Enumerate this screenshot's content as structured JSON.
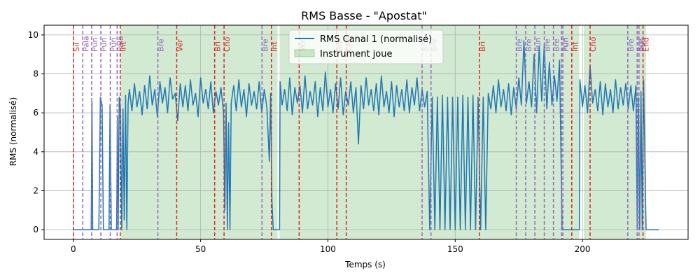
{
  "chart_data": {
    "type": "line",
    "title": "RMS Basse - \"Apostat\"",
    "xlabel": "Temps (s)",
    "ylabel": "RMS (normalisé)",
    "xlim": [
      -11.5,
      241.5
    ],
    "ylim": [
      -0.5,
      10.5
    ],
    "xticks": [
      0,
      50,
      100,
      150,
      200
    ],
    "yticks": [
      0,
      2,
      4,
      6,
      8,
      10
    ],
    "grid": true,
    "legend_position": "top-center",
    "series": [
      {
        "name": "RMS Canal 1 (normalisé)",
        "color": "#1f77b4",
        "points": [
          [
            0,
            0
          ],
          [
            3,
            0
          ],
          [
            3.5,
            0
          ],
          [
            7,
            0
          ],
          [
            7.3,
            6.6
          ],
          [
            7.6,
            0
          ],
          [
            10,
            0
          ],
          [
            10.6,
            6.8
          ],
          [
            11.3,
            6.4
          ],
          [
            11.8,
            0
          ],
          [
            14,
            0
          ],
          [
            14.4,
            6.4
          ],
          [
            14.9,
            0
          ],
          [
            17,
            0
          ],
          [
            17.3,
            5.8
          ],
          [
            17.6,
            0
          ],
          [
            18,
            6.8
          ],
          [
            18.5,
            6.2
          ],
          [
            19,
            0
          ],
          [
            19.5,
            6.2
          ],
          [
            20,
            0.5
          ],
          [
            20.5,
            6.9
          ],
          [
            21,
            0
          ],
          [
            21.5,
            6.5
          ],
          [
            22,
            7.2
          ],
          [
            23,
            6.1
          ],
          [
            24,
            7.5
          ],
          [
            25,
            6.3
          ],
          [
            26,
            7.1
          ],
          [
            27,
            5.9
          ],
          [
            28,
            7.4
          ],
          [
            29,
            6.2
          ],
          [
            30,
            7.9
          ],
          [
            31,
            6.4
          ],
          [
            32,
            7.2
          ],
          [
            33,
            5.8
          ],
          [
            34,
            7.6
          ],
          [
            35,
            6.5
          ],
          [
            36,
            7.3
          ],
          [
            37,
            6.0
          ],
          [
            38,
            7.8
          ],
          [
            39,
            6.7
          ],
          [
            40,
            7.0
          ],
          [
            41,
            5.6
          ],
          [
            42,
            7.5
          ],
          [
            43,
            6.3
          ],
          [
            44,
            7.4
          ],
          [
            45,
            6.1
          ],
          [
            46,
            7.7
          ],
          [
            47,
            6.4
          ],
          [
            48,
            7.0
          ],
          [
            49,
            5.8
          ],
          [
            50,
            7.8
          ],
          [
            51,
            6.5
          ],
          [
            52,
            7.2
          ],
          [
            53,
            6.2
          ],
          [
            54,
            7.6
          ],
          [
            55,
            6.0
          ],
          [
            56,
            7.1
          ],
          [
            57,
            6.4
          ],
          [
            58,
            7.3
          ],
          [
            59,
            6.0
          ],
          [
            59.5,
            1
          ],
          [
            60,
            6.5
          ],
          [
            60.5,
            0
          ],
          [
            61,
            5.5
          ],
          [
            61.5,
            0
          ],
          [
            62,
            6.5
          ],
          [
            63,
            7.4
          ],
          [
            64,
            6.1
          ],
          [
            65,
            7.7
          ],
          [
            66,
            6.3
          ],
          [
            67,
            7.2
          ],
          [
            68,
            5.8
          ],
          [
            69,
            7.5
          ],
          [
            70,
            6.4
          ],
          [
            71,
            7.1
          ],
          [
            72,
            6.2
          ],
          [
            73,
            7.6
          ],
          [
            74,
            6.0
          ],
          [
            75,
            7.2
          ],
          [
            76,
            6.3
          ],
          [
            77,
            3.5
          ],
          [
            77.5,
            7.0
          ],
          [
            78,
            1.5
          ],
          [
            78.5,
            0
          ],
          [
            80,
            0
          ],
          [
            81,
            0
          ],
          [
            81.2,
            7.6
          ],
          [
            82,
            6.4
          ],
          [
            83,
            7.2
          ],
          [
            84,
            6.1
          ],
          [
            85,
            7.8
          ],
          [
            86,
            5.9
          ],
          [
            87,
            7.3
          ],
          [
            88,
            6.5
          ],
          [
            89,
            7.4
          ],
          [
            90,
            6.0
          ],
          [
            91,
            7.9
          ],
          [
            92,
            6.2
          ],
          [
            93,
            7.1
          ],
          [
            94,
            6.4
          ],
          [
            95,
            7.6
          ],
          [
            96,
            5.8
          ],
          [
            97,
            7.3
          ],
          [
            98,
            6.1
          ],
          [
            99,
            8.1
          ],
          [
            100,
            6.3
          ],
          [
            101,
            7.2
          ],
          [
            102,
            6.0
          ],
          [
            103,
            7.5
          ],
          [
            104,
            6.2
          ],
          [
            105,
            7.8
          ],
          [
            106,
            5.9
          ],
          [
            107,
            7.1
          ],
          [
            108,
            6.4
          ],
          [
            109,
            7.6
          ],
          [
            110,
            6.0
          ],
          [
            111,
            7.3
          ],
          [
            112,
            4.4
          ],
          [
            113,
            7.4
          ],
          [
            114,
            6.2
          ],
          [
            115,
            7.8
          ],
          [
            116,
            6.4
          ],
          [
            117,
            7.2
          ],
          [
            118,
            6.1
          ],
          [
            119,
            7.5
          ],
          [
            120,
            5.9
          ],
          [
            121,
            7.9
          ],
          [
            122,
            6.3
          ],
          [
            123,
            7.1
          ],
          [
            124,
            6.0
          ],
          [
            125,
            7.6
          ],
          [
            126,
            5.8
          ],
          [
            127,
            7.4
          ],
          [
            128,
            6.3
          ],
          [
            129,
            7.2
          ],
          [
            130,
            6.1
          ],
          [
            131,
            7.7
          ],
          [
            132,
            6.0
          ],
          [
            133,
            7.3
          ],
          [
            134,
            6.4
          ],
          [
            135,
            7.8
          ],
          [
            136,
            6.1
          ],
          [
            137,
            7.2
          ],
          [
            138,
            6.3
          ],
          [
            139,
            7.1
          ],
          [
            140,
            0
          ],
          [
            141,
            6.8
          ],
          [
            142,
            0
          ],
          [
            143,
            6.8
          ],
          [
            144,
            0
          ],
          [
            145,
            6.9
          ],
          [
            146,
            0
          ],
          [
            147,
            6.8
          ],
          [
            148,
            0
          ],
          [
            149,
            6.8
          ],
          [
            150,
            0
          ],
          [
            151,
            6.8
          ],
          [
            152,
            0
          ],
          [
            153,
            6.9
          ],
          [
            154,
            0
          ],
          [
            155,
            6.8
          ],
          [
            156,
            0
          ],
          [
            157,
            6.9
          ],
          [
            158,
            0
          ],
          [
            159,
            6.8
          ],
          [
            160,
            0
          ],
          [
            161,
            6.8
          ],
          [
            162,
            0
          ],
          [
            163,
            7.0
          ],
          [
            164,
            6.2
          ],
          [
            165,
            7.4
          ],
          [
            166,
            6.0
          ],
          [
            167,
            7.7
          ],
          [
            168,
            6.3
          ],
          [
            169,
            7.2
          ],
          [
            170,
            6.1
          ],
          [
            171,
            7.5
          ],
          [
            172,
            5.9
          ],
          [
            173,
            7.3
          ],
          [
            174,
            6.2
          ],
          [
            175,
            7.8
          ],
          [
            176,
            6.4
          ],
          [
            177,
            9.7
          ],
          [
            178,
            6.5
          ],
          [
            179,
            7.6
          ],
          [
            180,
            6.3
          ],
          [
            181,
            9.0
          ],
          [
            182,
            6.0
          ],
          [
            183,
            9.4
          ],
          [
            184,
            6.6
          ],
          [
            185,
            9.5
          ],
          [
            186,
            6.2
          ],
          [
            187,
            8.6
          ],
          [
            188,
            6.4
          ],
          [
            189,
            7.9
          ],
          [
            190,
            6.6
          ],
          [
            191,
            8.7
          ],
          [
            192,
            0
          ],
          [
            193,
            0
          ],
          [
            195,
            0
          ],
          [
            196,
            0
          ],
          [
            197,
            0
          ],
          [
            198,
            0
          ],
          [
            198.8,
            0
          ],
          [
            199,
            7.7
          ],
          [
            200,
            6.3
          ],
          [
            201,
            7.4
          ],
          [
            202,
            6.0
          ],
          [
            203,
            8.4
          ],
          [
            204,
            6.5
          ],
          [
            205,
            7.2
          ],
          [
            206,
            6.1
          ],
          [
            207,
            7.6
          ],
          [
            208,
            5.9
          ],
          [
            209,
            7.5
          ],
          [
            210,
            6.3
          ],
          [
            211,
            7.2
          ],
          [
            212,
            6.0
          ],
          [
            213,
            7.7
          ],
          [
            214,
            6.2
          ],
          [
            215,
            7.3
          ],
          [
            216,
            6.4
          ],
          [
            217,
            7.5
          ],
          [
            218,
            6.2
          ],
          [
            219,
            7.4
          ],
          [
            220,
            6.1
          ],
          [
            221,
            7.4
          ],
          [
            221.5,
            0
          ],
          [
            222,
            6.8
          ],
          [
            222.5,
            0
          ],
          [
            223,
            7.1
          ],
          [
            223.5,
            0
          ],
          [
            224,
            7.7
          ],
          [
            225,
            0
          ],
          [
            227,
            0
          ],
          [
            230,
            0
          ]
        ]
      }
    ],
    "shaded_regions": {
      "name": "Instrument joue",
      "color": "#2ca02c",
      "ranges": [
        [
          18.5,
          80.2
        ],
        [
          81,
          198.8
        ],
        [
          200.5,
          225
        ]
      ]
    },
    "markers": [
      {
        "x": 0,
        "label": "Sil",
        "color": "#d62728"
      },
      {
        "x": 3.7,
        "label": "Pala",
        "color": "#9467bd"
      },
      {
        "x": 7.2,
        "label": "Pun",
        "color": "#9467bd"
      },
      {
        "x": 10.8,
        "label": "Pun",
        "color": "#9467bd"
      },
      {
        "x": 14.5,
        "label": "Pun",
        "color": "#9467bd"
      },
      {
        "x": 17.2,
        "label": "Pala",
        "color": "#9467bd"
      },
      {
        "x": 18.4,
        "label": "Int",
        "color": "#d62728"
      },
      {
        "x": 33.2,
        "label": "Bre",
        "color": "#9467bd"
      },
      {
        "x": 40.6,
        "label": "Ver",
        "color": "#d62728"
      },
      {
        "x": 55.5,
        "label": "Bri",
        "color": "#d62728"
      },
      {
        "x": 59.2,
        "label": "Cho",
        "color": "#d62728"
      },
      {
        "x": 74.1,
        "label": "Bre",
        "color": "#9467bd"
      },
      {
        "x": 77.8,
        "label": "Int",
        "color": "#d62728"
      },
      {
        "x": 88.7,
        "label": "Ver",
        "color": "#d62728"
      },
      {
        "x": 103.5,
        "label": "Bri",
        "color": "#d62728"
      },
      {
        "x": 107.2,
        "label": "Cho",
        "color": "#d62728"
      },
      {
        "x": 137.0,
        "label": "Bre",
        "color": "#9467bd"
      },
      {
        "x": 140.5,
        "label": "Bre",
        "color": "#9467bd"
      },
      {
        "x": 159.5,
        "label": "Bri",
        "color": "#d62728"
      },
      {
        "x": 174.0,
        "label": "Bre",
        "color": "#9467bd"
      },
      {
        "x": 177.7,
        "label": "Bre",
        "color": "#9467bd"
      },
      {
        "x": 181.3,
        "label": "Pun",
        "color": "#9467bd"
      },
      {
        "x": 185.0,
        "label": "Bre",
        "color": "#9467bd"
      },
      {
        "x": 188.6,
        "label": "Bre",
        "color": "#9467bd"
      },
      {
        "x": 191.8,
        "label": "Pun",
        "color": "#9467bd"
      },
      {
        "x": 192.3,
        "label": "Pun",
        "color": "#9467bd"
      },
      {
        "x": 195.8,
        "label": "Int",
        "color": "#d62728"
      },
      {
        "x": 203.0,
        "label": "Cho",
        "color": "#d62728"
      },
      {
        "x": 217.8,
        "label": "Bre",
        "color": "#9467bd"
      },
      {
        "x": 221.5,
        "label": "Bre",
        "color": "#9467bd"
      },
      {
        "x": 222.2,
        "label": "Pun",
        "color": "#9467bd"
      },
      {
        "x": 223.8,
        "label": "End",
        "color": "#d62728"
      }
    ]
  }
}
